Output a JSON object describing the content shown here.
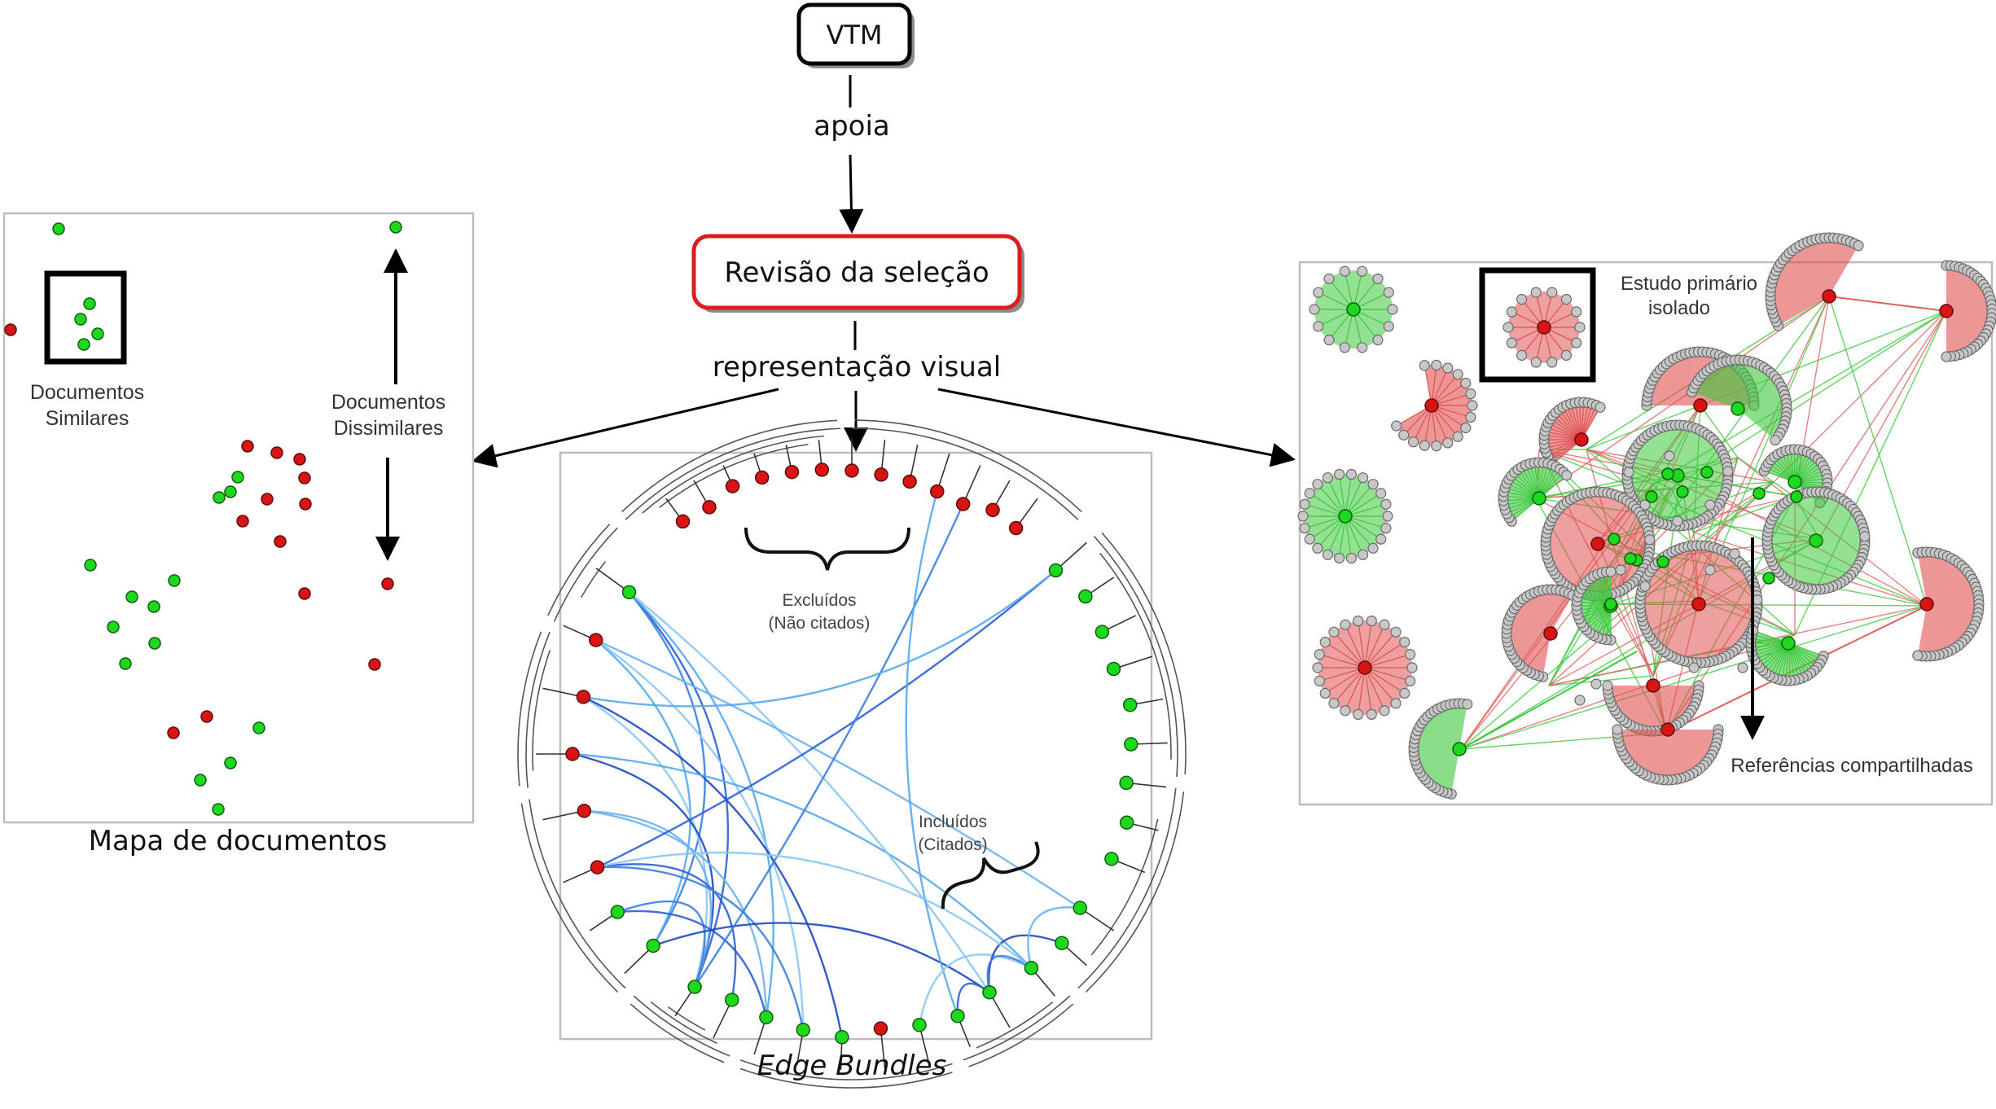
{
  "nodes": {
    "vtm": "VTM",
    "revisao": "Revisão da seleção"
  },
  "edges": {
    "apoia": "apoia",
    "representacao": "representação visual"
  },
  "panels": {
    "mapa": {
      "caption": "Mapa de documentos",
      "similar_label": [
        "Documentos",
        "Similares"
      ],
      "dissimilar_label": [
        "Documentos",
        "Dissimilares"
      ]
    },
    "edge_bundles": {
      "caption": "Edge Bundles",
      "excluded_label": [
        "Excluídos",
        "(Não citados)"
      ],
      "included_label": [
        "Incluídos",
        "(Citados)"
      ]
    },
    "network": {
      "isolated_label": [
        "Estudo primário",
        "isolado"
      ],
      "shared_label": "Referências compartilhadas"
    }
  },
  "colors": {
    "included": "#1ed81e",
    "excluded": "#d81414",
    "highlight_border": "#dd1c1c",
    "bundle": "#3a7fe0"
  }
}
